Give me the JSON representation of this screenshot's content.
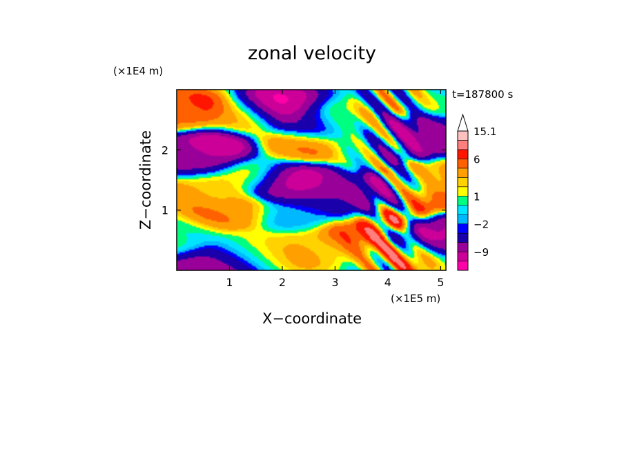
{
  "chart_data": {
    "type": "heatmap",
    "title": "zonal velocity",
    "xlabel": "X−coordinate",
    "ylabel": "Z−coordinate",
    "x_unit": "(×1E5 m)",
    "y_unit": "(×1E4 m)",
    "time_label": "t=187800 s",
    "xlim": [
      0,
      5.1
    ],
    "ylim": [
      0,
      3.0
    ],
    "x_ticks": [
      1,
      2,
      3,
      4,
      5
    ],
    "y_ticks": [
      1,
      2
    ],
    "grid": false,
    "colorbar": {
      "levels": [
        -15,
        -12,
        -9,
        -6,
        -3,
        -2,
        -1,
        0,
        1,
        2,
        3,
        4.5,
        6,
        9,
        12,
        15.1
      ],
      "labels": [
        "15.1",
        "6",
        "1",
        "−2",
        "−9"
      ],
      "colors": [
        "#ff00a8",
        "#cc0099",
        "#990099",
        "#1a00aa",
        "#0000ff",
        "#00b8ff",
        "#00e5ff",
        "#00ff80",
        "#ffff00",
        "#ffd200",
        "#ffa000",
        "#ff6000",
        "#ff1500",
        "#ff7f7f",
        "#ffc0c0"
      ],
      "extend": "max"
    },
    "features": [
      {
        "x": 1.05,
        "z": 0.95,
        "u": 5
      },
      {
        "x": 0.5,
        "z": 1.35,
        "u": 4
      },
      {
        "x": 2.3,
        "z": 2.1,
        "u": 5
      },
      {
        "x": 2.8,
        "z": 2.5,
        "u": 4
      },
      {
        "x": 1.4,
        "z": 2.55,
        "u": 3
      },
      {
        "x": 0.2,
        "z": 2.65,
        "u": 6
      },
      {
        "x": 0.7,
        "z": 2.0,
        "u": -12
      },
      {
        "x": 0.2,
        "z": 1.85,
        "u": -6
      },
      {
        "x": 2.0,
        "z": 2.7,
        "u": -14
      },
      {
        "x": 2.55,
        "z": 2.45,
        "u": -9
      },
      {
        "x": 2.15,
        "z": 1.45,
        "u": -12
      },
      {
        "x": 2.6,
        "z": 1.3,
        "u": -7
      },
      {
        "x": 3.95,
        "z": 1.2,
        "u": -14
      },
      {
        "x": 3.5,
        "z": 1.15,
        "u": -9
      },
      {
        "x": 4.6,
        "z": 2.15,
        "u": -9
      },
      {
        "x": 2.2,
        "z": 0.9,
        "u": -2
      },
      {
        "x": 3.0,
        "z": 1.1,
        "u": -2
      },
      {
        "x": 1.6,
        "z": 0.35,
        "u": 2
      },
      {
        "x": 2.5,
        "z": 0.4,
        "u": 3
      },
      {
        "x": 3.4,
        "z": 0.6,
        "u": 7
      },
      {
        "x": 3.95,
        "z": 0.9,
        "u": 7
      },
      {
        "x": 4.4,
        "z": 1.2,
        "u": 10
      },
      {
        "x": 4.25,
        "z": 0.3,
        "u": 4
      },
      {
        "x": 0.6,
        "z": 0.1,
        "u": -10
      },
      {
        "x": 1.2,
        "z": 0.3,
        "u": 0
      },
      {
        "x": 3.7,
        "z": 2.1,
        "u": 0
      },
      {
        "x": 4.9,
        "z": 1.55,
        "u": 3
      },
      {
        "x": 4.8,
        "z": 0.6,
        "u": -10
      },
      {
        "x": 1.5,
        "z": 1.6,
        "u": 1
      },
      {
        "x": 0.05,
        "z": 0.5,
        "u": 0
      }
    ]
  }
}
